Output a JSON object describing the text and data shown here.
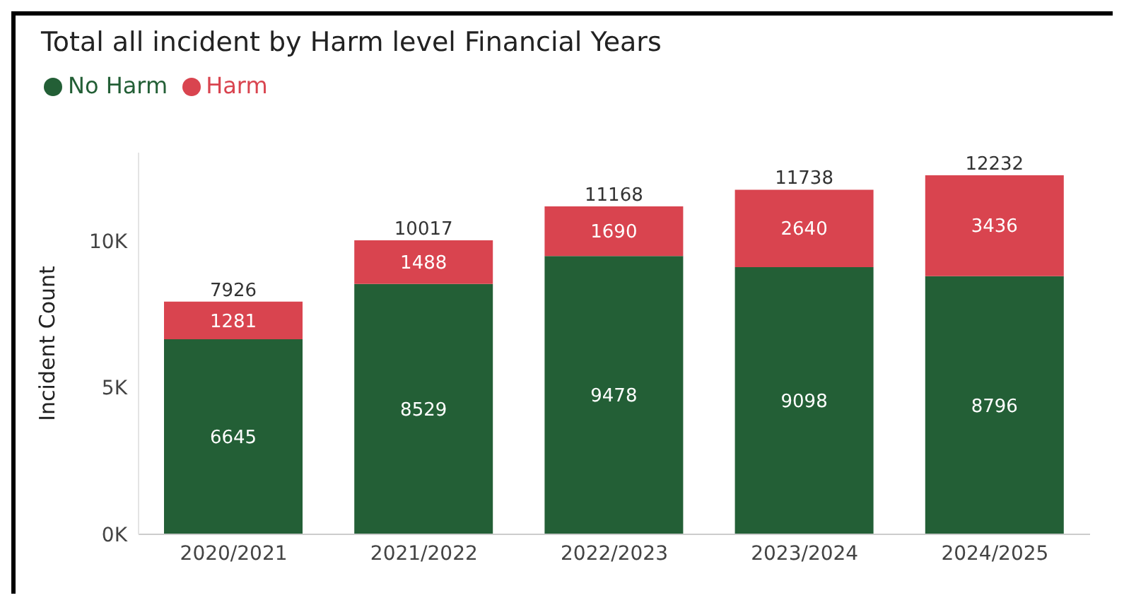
{
  "chart_data": {
    "type": "bar",
    "title": "Total all incident by Harm level Financial Years",
    "ylabel": "Incident Count",
    "categories": [
      "2020/2021",
      "2021/2022",
      "2022/2023",
      "2023/2024",
      "2024/2025"
    ],
    "series": [
      {
        "name": "No Harm",
        "color": "#235f36",
        "values": [
          6645,
          8529,
          9478,
          9098,
          8796
        ]
      },
      {
        "name": "Harm",
        "color": "#d9444f",
        "values": [
          1281,
          1488,
          1690,
          2640,
          3436
        ]
      }
    ],
    "stacked": true,
    "data_labels": true,
    "totals": [
      "7926",
      "10017",
      "11168",
      "11738",
      "12232"
    ],
    "ylim": [
      0,
      13000
    ],
    "yticks": [
      {
        "value": 0,
        "label": "0K"
      },
      {
        "value": 5000,
        "label": "5K"
      },
      {
        "value": 10000,
        "label": "10K"
      }
    ],
    "grid": false,
    "legend": "top left"
  }
}
